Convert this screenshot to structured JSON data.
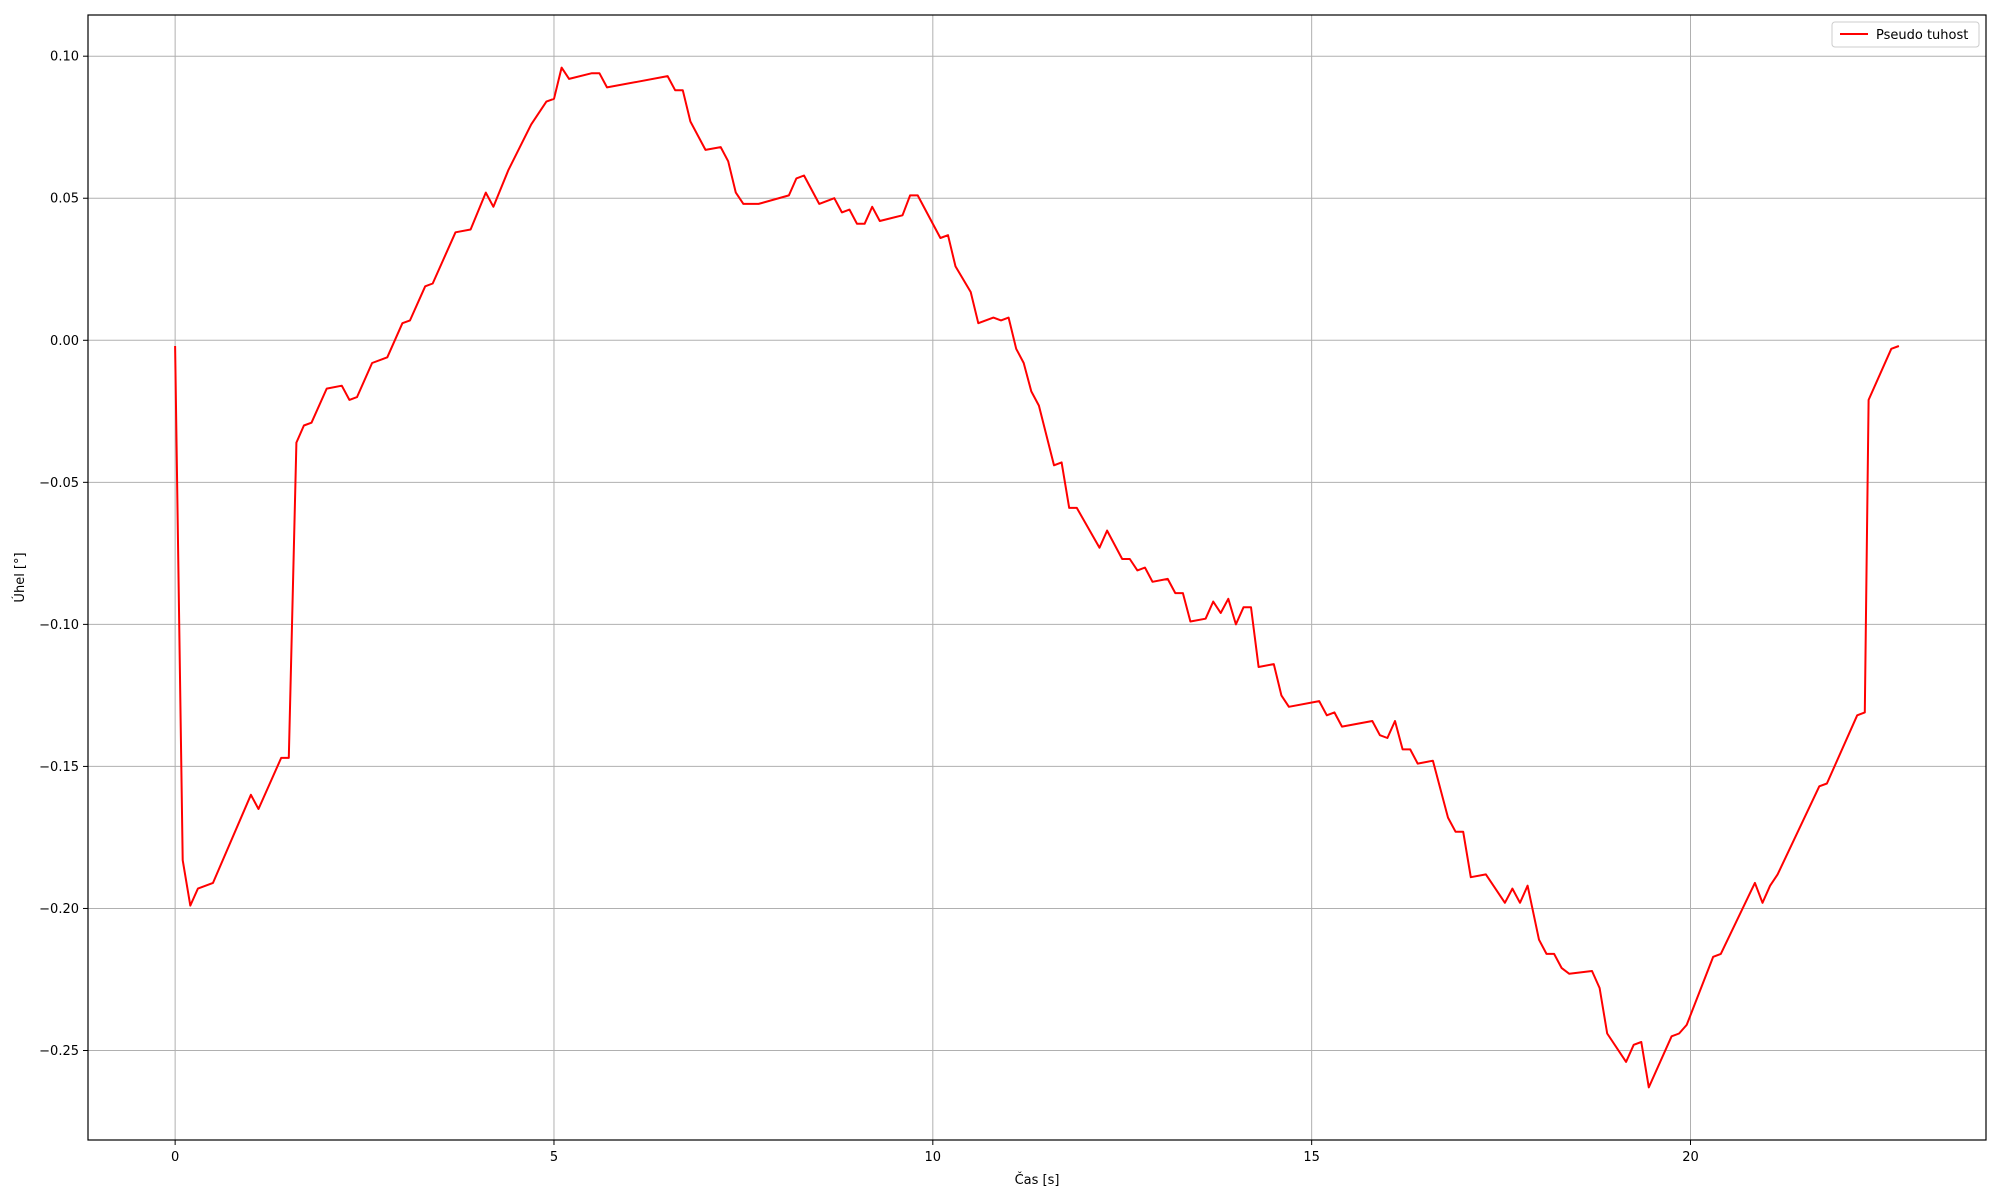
{
  "chart_data": {
    "type": "line",
    "title": "",
    "xlabel": "Čas [s]",
    "ylabel": "Úhel [°]",
    "xlim": [
      -1.15,
      23.9
    ],
    "ylim": [
      -0.2815,
      0.1145
    ],
    "xticks": [
      0,
      5,
      10,
      15,
      20
    ],
    "xtick_labels": [
      "0",
      "5",
      "10",
      "15",
      "20"
    ],
    "yticks": [
      0.1,
      0.05,
      0.0,
      -0.05,
      -0.1,
      -0.15,
      -0.2,
      -0.25
    ],
    "ytick_labels": [
      "0.10",
      "0.05",
      "0.00",
      "−0.05",
      "−0.10",
      "−0.15",
      "−0.20",
      "−0.25"
    ],
    "grid": true,
    "legend_position": "top-right",
    "series": [
      {
        "name": "Pseudo tuhost",
        "color": "#ff0000",
        "points": [
          [
            0.0,
            -0.002
          ],
          [
            0.1,
            -0.183
          ],
          [
            0.2,
            -0.199
          ],
          [
            0.3,
            -0.193
          ],
          [
            0.5,
            -0.191
          ],
          [
            1.0,
            -0.16
          ],
          [
            1.1,
            -0.165
          ],
          [
            1.4,
            -0.147
          ],
          [
            1.5,
            -0.147
          ],
          [
            1.6,
            -0.036
          ],
          [
            1.7,
            -0.03
          ],
          [
            1.8,
            -0.029
          ],
          [
            2.0,
            -0.017
          ],
          [
            2.2,
            -0.016
          ],
          [
            2.3,
            -0.021
          ],
          [
            2.4,
            -0.02
          ],
          [
            2.6,
            -0.008
          ],
          [
            2.8,
            -0.006
          ],
          [
            3.0,
            0.006
          ],
          [
            3.1,
            0.007
          ],
          [
            3.3,
            0.019
          ],
          [
            3.4,
            0.02
          ],
          [
            3.7,
            0.038
          ],
          [
            3.9,
            0.039
          ],
          [
            4.1,
            0.052
          ],
          [
            4.2,
            0.047
          ],
          [
            4.4,
            0.06
          ],
          [
            4.7,
            0.076
          ],
          [
            4.9,
            0.084
          ],
          [
            5.0,
            0.085
          ],
          [
            5.1,
            0.096
          ],
          [
            5.2,
            0.092
          ],
          [
            5.5,
            0.094
          ],
          [
            5.6,
            0.094
          ],
          [
            5.7,
            0.089
          ],
          [
            6.1,
            0.091
          ],
          [
            6.5,
            0.093
          ],
          [
            6.6,
            0.088
          ],
          [
            6.7,
            0.088
          ],
          [
            6.8,
            0.077
          ],
          [
            7.0,
            0.067
          ],
          [
            7.2,
            0.068
          ],
          [
            7.3,
            0.063
          ],
          [
            7.4,
            0.052
          ],
          [
            7.5,
            0.048
          ],
          [
            7.7,
            0.048
          ],
          [
            8.1,
            0.051
          ],
          [
            8.2,
            0.057
          ],
          [
            8.3,
            0.058
          ],
          [
            8.5,
            0.048
          ],
          [
            8.7,
            0.05
          ],
          [
            8.8,
            0.045
          ],
          [
            8.9,
            0.046
          ],
          [
            9.0,
            0.041
          ],
          [
            9.1,
            0.041
          ],
          [
            9.2,
            0.047
          ],
          [
            9.3,
            0.042
          ],
          [
            9.6,
            0.044
          ],
          [
            9.7,
            0.051
          ],
          [
            9.8,
            0.051
          ],
          [
            10.1,
            0.036
          ],
          [
            10.2,
            0.037
          ],
          [
            10.3,
            0.026
          ],
          [
            10.5,
            0.017
          ],
          [
            10.6,
            0.006
          ],
          [
            10.8,
            0.008
          ],
          [
            10.9,
            0.007
          ],
          [
            11.0,
            0.008
          ],
          [
            11.1,
            -0.003
          ],
          [
            11.2,
            -0.008
          ],
          [
            11.3,
            -0.018
          ],
          [
            11.4,
            -0.023
          ],
          [
            11.6,
            -0.044
          ],
          [
            11.7,
            -0.043
          ],
          [
            11.8,
            -0.059
          ],
          [
            11.9,
            -0.059
          ],
          [
            12.2,
            -0.073
          ],
          [
            12.3,
            -0.067
          ],
          [
            12.5,
            -0.077
          ],
          [
            12.6,
            -0.077
          ],
          [
            12.7,
            -0.081
          ],
          [
            12.8,
            -0.08
          ],
          [
            12.9,
            -0.085
          ],
          [
            13.1,
            -0.084
          ],
          [
            13.2,
            -0.089
          ],
          [
            13.3,
            -0.089
          ],
          [
            13.4,
            -0.099
          ],
          [
            13.6,
            -0.098
          ],
          [
            13.7,
            -0.092
          ],
          [
            13.8,
            -0.096
          ],
          [
            13.9,
            -0.091
          ],
          [
            14.0,
            -0.1
          ],
          [
            14.1,
            -0.094
          ],
          [
            14.2,
            -0.094
          ],
          [
            14.3,
            -0.115
          ],
          [
            14.5,
            -0.114
          ],
          [
            14.6,
            -0.125
          ],
          [
            14.7,
            -0.129
          ],
          [
            15.1,
            -0.127
          ],
          [
            15.2,
            -0.132
          ],
          [
            15.3,
            -0.131
          ],
          [
            15.4,
            -0.136
          ],
          [
            15.8,
            -0.134
          ],
          [
            15.9,
            -0.139
          ],
          [
            16.0,
            -0.14
          ],
          [
            16.1,
            -0.134
          ],
          [
            16.2,
            -0.144
          ],
          [
            16.3,
            -0.144
          ],
          [
            16.4,
            -0.149
          ],
          [
            16.6,
            -0.148
          ],
          [
            16.8,
            -0.168
          ],
          [
            16.9,
            -0.173
          ],
          [
            17.0,
            -0.173
          ],
          [
            17.1,
            -0.189
          ],
          [
            17.3,
            -0.188
          ],
          [
            17.55,
            -0.198
          ],
          [
            17.65,
            -0.193
          ],
          [
            17.75,
            -0.198
          ],
          [
            17.85,
            -0.192
          ],
          [
            18.0,
            -0.211
          ],
          [
            18.1,
            -0.216
          ],
          [
            18.2,
            -0.216
          ],
          [
            18.3,
            -0.221
          ],
          [
            18.4,
            -0.223
          ],
          [
            18.7,
            -0.222
          ],
          [
            18.8,
            -0.228
          ],
          [
            18.9,
            -0.244
          ],
          [
            19.15,
            -0.254
          ],
          [
            19.25,
            -0.248
          ],
          [
            19.35,
            -0.247
          ],
          [
            19.45,
            -0.263
          ],
          [
            19.75,
            -0.245
          ],
          [
            19.85,
            -0.244
          ],
          [
            19.95,
            -0.241
          ],
          [
            20.3,
            -0.217
          ],
          [
            20.4,
            -0.216
          ],
          [
            20.85,
            -0.191
          ],
          [
            20.95,
            -0.198
          ],
          [
            21.05,
            -0.192
          ],
          [
            21.15,
            -0.188
          ],
          [
            21.7,
            -0.157
          ],
          [
            21.8,
            -0.156
          ],
          [
            22.2,
            -0.132
          ],
          [
            22.3,
            -0.131
          ],
          [
            22.35,
            -0.021
          ],
          [
            22.65,
            -0.003
          ],
          [
            22.75,
            -0.002
          ]
        ]
      }
    ]
  }
}
